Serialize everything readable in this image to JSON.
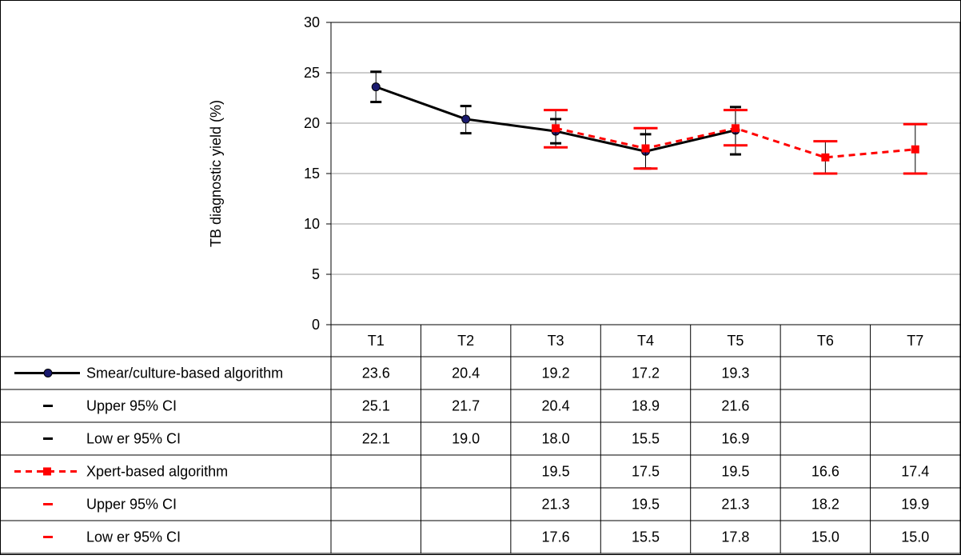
{
  "chart_data": {
    "type": "line",
    "title": "",
    "xlabel": "",
    "ylabel": "TB diagnostic yield (%)",
    "ylim": [
      0,
      30
    ],
    "yticks": [
      0,
      5,
      10,
      15,
      20,
      25,
      30
    ],
    "grid": true,
    "categories": [
      "T1",
      "T2",
      "T3",
      "T4",
      "T5",
      "T6",
      "T7"
    ],
    "series": [
      {
        "name": "Smear/culture-based algorithm",
        "color": "#000000",
        "marker_color": "#1a1a6e",
        "line_style": "solid",
        "marker": "circle",
        "values": [
          23.6,
          20.4,
          19.2,
          17.2,
          19.3,
          null,
          null
        ],
        "upper": [
          25.1,
          21.7,
          20.4,
          18.9,
          21.6,
          null,
          null
        ],
        "lower": [
          22.1,
          19.0,
          18.0,
          15.5,
          16.9,
          null,
          null
        ],
        "upper_label": "Upper 95% CI",
        "lower_label": "Low er 95% CI"
      },
      {
        "name": "Xpert-based algorithm",
        "color": "#ff0000",
        "line_style": "dashed",
        "marker": "square",
        "values": [
          null,
          null,
          19.5,
          17.5,
          19.5,
          16.6,
          17.4
        ],
        "upper": [
          null,
          null,
          21.3,
          19.5,
          21.3,
          18.2,
          19.9
        ],
        "lower": [
          null,
          null,
          17.6,
          15.5,
          17.8,
          15.0,
          15.0
        ],
        "upper_label": "Upper 95% CI",
        "lower_label": "Low er 95% CI"
      }
    ],
    "table": {
      "rows": [
        {
          "label": "Smear/culture-based algorithm",
          "cells": [
            "23.6",
            "20.4",
            "19.2",
            "17.2",
            "19.3",
            "",
            ""
          ]
        },
        {
          "label": "Upper 95% CI",
          "cells": [
            "25.1",
            "21.7",
            "20.4",
            "18.9",
            "21.6",
            "",
            ""
          ]
        },
        {
          "label": "Low er 95% CI",
          "cells": [
            "22.1",
            "19.0",
            "18.0",
            "15.5",
            "16.9",
            "",
            ""
          ]
        },
        {
          "label": "Xpert-based algorithm",
          "cells": [
            "",
            "",
            "19.5",
            "17.5",
            "19.5",
            "16.6",
            "17.4"
          ]
        },
        {
          "label": "Upper 95% CI",
          "cells": [
            "",
            "",
            "21.3",
            "19.5",
            "21.3",
            "18.2",
            "19.9"
          ]
        },
        {
          "label": "Low er 95% CI",
          "cells": [
            "",
            "",
            "17.6",
            "15.5",
            "17.8",
            "15.0",
            "15.0"
          ]
        }
      ]
    }
  }
}
